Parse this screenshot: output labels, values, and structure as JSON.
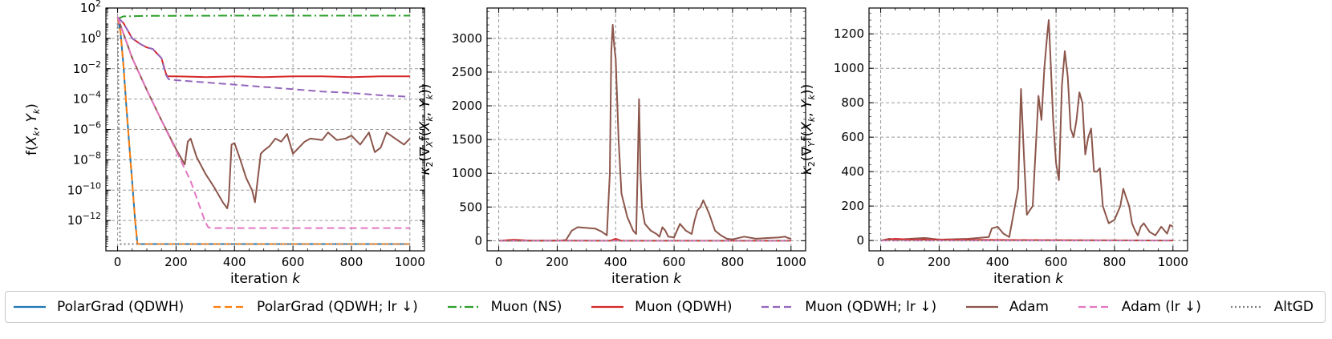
{
  "chart_data": [
    {
      "type": "line",
      "xlabel": "iteration k",
      "ylabel": "f(X_k, Y_k)",
      "xlim": [
        -40,
        1050
      ],
      "ylim_log10": [
        -14,
        2
      ],
      "yscale": "log",
      "grid": true,
      "xticks": [
        "0",
        "200",
        "400",
        "600",
        "800",
        "1000"
      ],
      "yticks": [
        "10^2",
        "10^0",
        "10^-2",
        "10^-4",
        "10^-6",
        "10^-8",
        "10^-10",
        "10^-12"
      ],
      "series": [
        {
          "name": "PolarGrad (QDWH)",
          "x": [
            0,
            10,
            20,
            30,
            40,
            50,
            60,
            68,
            1000
          ],
          "log10_y": [
            1.4,
            0.4,
            -1.8,
            -4.5,
            -7.0,
            -9.5,
            -12.0,
            -13.55,
            -13.55
          ]
        },
        {
          "name": "PolarGrad (QDWH; lr ↓)",
          "x": [
            0,
            10,
            20,
            30,
            40,
            50,
            60,
            68,
            1000
          ],
          "log10_y": [
            1.4,
            0.4,
            -1.8,
            -4.5,
            -7.0,
            -9.5,
            -12.0,
            -13.55,
            -13.55
          ]
        },
        {
          "name": "Muon (NS)",
          "x": [
            0,
            20,
            100,
            200,
            400,
            600,
            800,
            1000
          ],
          "log10_y": [
            1.3,
            1.45,
            1.48,
            1.49,
            1.5,
            1.5,
            1.5,
            1.5
          ]
        },
        {
          "name": "Muon (QDWH)",
          "x": [
            0,
            20,
            50,
            80,
            100,
            120,
            150,
            165,
            170,
            200,
            300,
            400,
            500,
            600,
            700,
            800,
            900,
            1000
          ],
          "log10_y": [
            1.4,
            1.0,
            0.0,
            -0.4,
            -0.6,
            -0.7,
            -1.3,
            -2.3,
            -2.5,
            -2.5,
            -2.55,
            -2.5,
            -2.55,
            -2.5,
            -2.5,
            -2.55,
            -2.5,
            -2.5
          ]
        },
        {
          "name": "Muon (QDWH; lr ↓)",
          "x": [
            0,
            20,
            50,
            80,
            100,
            120,
            150,
            165,
            175,
            200,
            300,
            400,
            500,
            600,
            700,
            800,
            900,
            1000
          ],
          "log10_y": [
            1.4,
            1.0,
            0.0,
            -0.4,
            -0.6,
            -0.7,
            -1.3,
            -2.4,
            -2.7,
            -2.75,
            -2.9,
            -3.05,
            -3.2,
            -3.35,
            -3.5,
            -3.6,
            -3.75,
            -3.85
          ]
        },
        {
          "name": "Adam",
          "x": [
            0,
            50,
            100,
            150,
            200,
            230,
            240,
            250,
            270,
            300,
            330,
            360,
            375,
            380,
            390,
            400,
            420,
            440,
            460,
            470,
            490,
            500,
            520,
            540,
            560,
            580,
            600,
            640,
            660,
            700,
            720,
            750,
            780,
            800,
            830,
            860,
            880,
            900,
            920,
            950,
            980,
            1000
          ],
          "log10_y": [
            1.4,
            -1.3,
            -3.4,
            -5.4,
            -7.3,
            -8.3,
            -6.8,
            -6.6,
            -7.8,
            -8.9,
            -9.8,
            -10.8,
            -11.2,
            -10.7,
            -7.0,
            -6.9,
            -8.0,
            -9.2,
            -10.0,
            -10.8,
            -7.6,
            -7.4,
            -7.1,
            -6.6,
            -6.8,
            -6.3,
            -7.6,
            -6.8,
            -6.6,
            -6.7,
            -6.2,
            -6.7,
            -6.6,
            -6.4,
            -7.0,
            -6.2,
            -7.5,
            -7.2,
            -6.2,
            -6.6,
            -7.0,
            -6.6
          ]
        },
        {
          "name": "Adam (lr ↓)",
          "x": [
            0,
            50,
            100,
            150,
            200,
            250,
            300,
            310,
            320,
            400,
            600,
            800,
            1000
          ],
          "log10_y": [
            1.4,
            -1.3,
            -3.4,
            -5.4,
            -7.4,
            -9.4,
            -12.1,
            -12.45,
            -12.5,
            -12.5,
            -12.5,
            -12.5,
            -12.5
          ]
        },
        {
          "name": "AltGD",
          "x": [
            0,
            3,
            6,
            8,
            10,
            1000
          ],
          "log10_y": [
            1.0,
            -4.0,
            -9.0,
            -13.2,
            -13.55,
            -13.55
          ]
        }
      ]
    },
    {
      "type": "line",
      "xlabel": "iteration k",
      "ylabel": "κ₂(∇_X f(X_k, Y_k))",
      "xlim": [
        -40,
        1050
      ],
      "ylim": [
        -150,
        3450
      ],
      "grid": true,
      "xticks": [
        "0",
        "200",
        "400",
        "600",
        "800",
        "1000"
      ],
      "yticks": [
        "0",
        "500",
        "1000",
        "1500",
        "2000",
        "2500",
        "3000"
      ],
      "series": [
        {
          "name": "Adam",
          "x": [
            0,
            200,
            230,
            250,
            270,
            300,
            330,
            350,
            370,
            380,
            385,
            390,
            395,
            400,
            410,
            420,
            440,
            460,
            470,
            475,
            480,
            485,
            490,
            500,
            520,
            540,
            550,
            560,
            570,
            580,
            600,
            610,
            620,
            640,
            660,
            670,
            680,
            690,
            700,
            720,
            740,
            760,
            780,
            800,
            840,
            880,
            920,
            960,
            980,
            990,
            1000
          ],
          "y": [
            0,
            0,
            10,
            150,
            200,
            190,
            180,
            140,
            80,
            1000,
            2800,
            3200,
            2900,
            2700,
            1500,
            700,
            350,
            150,
            100,
            1000,
            2100,
            1000,
            500,
            250,
            150,
            100,
            60,
            200,
            150,
            60,
            50,
            150,
            250,
            150,
            100,
            300,
            450,
            500,
            600,
            400,
            150,
            80,
            30,
            20,
            60,
            30,
            40,
            50,
            60,
            40,
            30
          ]
        },
        {
          "name": "Muon (QDWH)",
          "x": [
            0,
            50,
            100,
            380,
            400,
            420,
            1000
          ],
          "y": [
            0,
            15,
            5,
            0,
            30,
            0,
            0
          ]
        },
        {
          "name": "Adam (lr ↓)",
          "x": [
            0,
            1000
          ],
          "y": [
            0,
            0
          ]
        },
        {
          "name": "AltGD",
          "x": [
            0,
            1000
          ],
          "y": [
            0,
            0
          ]
        }
      ]
    },
    {
      "type": "line",
      "xlabel": "iteration k",
      "ylabel": "κ₂(∇_Y f(X_k, Y_k))",
      "xlim": [
        -40,
        1050
      ],
      "ylim": [
        -60,
        1350
      ],
      "grid": true,
      "xticks": [
        "0",
        "200",
        "400",
        "600",
        "800",
        "1000"
      ],
      "yticks": [
        "0",
        "200",
        "400",
        "600",
        "800",
        "1000",
        "1200"
      ],
      "series": [
        {
          "name": "Adam",
          "x": [
            0,
            30,
            50,
            100,
            150,
            200,
            300,
            370,
            380,
            400,
            420,
            440,
            470,
            480,
            490,
            500,
            520,
            540,
            550,
            560,
            570,
            575,
            580,
            590,
            600,
            610,
            620,
            630,
            640,
            650,
            660,
            670,
            680,
            690,
            700,
            710,
            720,
            730,
            740,
            750,
            760,
            770,
            780,
            800,
            820,
            830,
            840,
            850,
            860,
            870,
            880,
            890,
            900,
            920,
            940,
            960,
            980,
            990,
            1000
          ],
          "y": [
            0,
            10,
            5,
            10,
            15,
            5,
            10,
            20,
            70,
            80,
            40,
            20,
            300,
            880,
            500,
            150,
            200,
            840,
            700,
            1000,
            1200,
            1280,
            1100,
            700,
            450,
            350,
            900,
            1100,
            950,
            650,
            600,
            700,
            860,
            800,
            500,
            600,
            650,
            400,
            400,
            420,
            200,
            150,
            100,
            120,
            200,
            300,
            250,
            200,
            100,
            60,
            30,
            80,
            100,
            50,
            30,
            80,
            40,
            90,
            80
          ]
        },
        {
          "name": "Muon (QDWH)",
          "x": [
            0,
            50,
            100,
            1000
          ],
          "y": [
            0,
            10,
            5,
            0
          ]
        },
        {
          "name": "Adam (lr ↓)",
          "x": [
            0,
            1000
          ],
          "y": [
            0,
            0
          ]
        },
        {
          "name": "AltGD",
          "x": [
            0,
            1000
          ],
          "y": [
            0,
            0
          ]
        }
      ]
    }
  ],
  "legend": [
    {
      "label": "PolarGrad (QDWH)",
      "color": "#1f77b4",
      "dash": "solid"
    },
    {
      "label": "PolarGrad (QDWH; lr ↓)",
      "color": "#ff7f0e",
      "dash": "dashed"
    },
    {
      "label": "Muon (NS)",
      "color": "#2ca02c",
      "dash": "dashdot"
    },
    {
      "label": "Muon (QDWH)",
      "color": "#d62728",
      "dash": "solid"
    },
    {
      "label": "Muon (QDWH; lr ↓)",
      "color": "#9467bd",
      "dash": "dashed"
    },
    {
      "label": "Adam",
      "color": "#8c564b",
      "dash": "solid"
    },
    {
      "label": "Adam (lr ↓)",
      "color": "#e377c2",
      "dash": "dashed"
    },
    {
      "label": "AltGD",
      "color": "#7f7f7f",
      "dash": "dotted"
    }
  ]
}
